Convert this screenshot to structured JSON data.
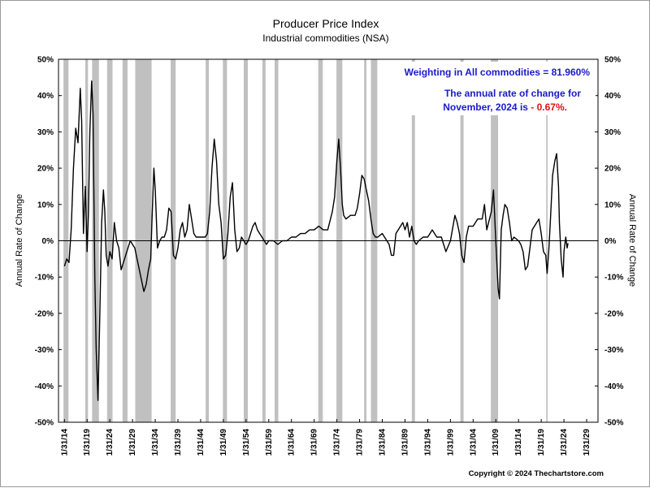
{
  "title": "Producer Price Index",
  "subtitle": "Industrial commodities (NSA)",
  "copyright": "Copyright © 2024 Thechartstore.com",
  "annotation": {
    "weighting": "Weighting in All commodities = 81.960%",
    "rate_line1": "The annual rate of change for",
    "rate_line2_prefix": "November, 2024 is ",
    "rate_value": "- 0.67%.",
    "text_color": "#1a1acc",
    "value_color": "#e01010"
  },
  "chart_data": {
    "type": "line",
    "title": "Producer Price Index",
    "subtitle": "Industrial commodities (NSA)",
    "ylabel": "Annual Rate of Change",
    "ylabel_right": "Annual Rate of Change",
    "xlim": [
      1912.7,
      2031.5
    ],
    "ylim": [
      -50,
      50
    ],
    "y_ticks": [
      -50,
      -40,
      -30,
      -20,
      -10,
      0,
      10,
      20,
      30,
      40,
      50
    ],
    "y_tick_labels": [
      "-50%",
      "-40%",
      "-30%",
      "-20%",
      "-10%",
      "0%",
      "10%",
      "20%",
      "30%",
      "40%",
      "50%"
    ],
    "x_tick_labels": [
      "1/31/14",
      "1/31/19",
      "1/31/24",
      "1/31/29",
      "1/31/34",
      "1/31/39",
      "1/31/44",
      "1/31/49",
      "1/31/54",
      "1/31/59",
      "1/31/64",
      "1/31/69",
      "1/31/74",
      "1/31/79",
      "1/31/84",
      "1/31/89",
      "1/31/94",
      "1/31/99",
      "1/31/04",
      "1/31/09",
      "1/31/14",
      "1/31/19",
      "1/31/24",
      "1/31/29"
    ],
    "x_tick_years": [
      1914,
      1919,
      1924,
      1929,
      1934,
      1939,
      1944,
      1949,
      1954,
      1959,
      1964,
      1969,
      1974,
      1979,
      1984,
      1989,
      1994,
      1999,
      2004,
      2009,
      2014,
      2019,
      2024,
      2029
    ],
    "grid": false,
    "zero_line": true,
    "line_color": "#000000",
    "recession_color": "#c0c0c0",
    "recessions": [
      [
        1913.8,
        1914.9
      ],
      [
        1918.6,
        1919.2
      ],
      [
        1920.1,
        1921.6
      ],
      [
        1923.4,
        1924.6
      ],
      [
        1926.8,
        1927.9
      ],
      [
        1929.6,
        1933.2
      ],
      [
        1937.4,
        1938.5
      ],
      [
        1945.1,
        1945.8
      ],
      [
        1948.9,
        1949.8
      ],
      [
        1953.5,
        1954.4
      ],
      [
        1957.6,
        1958.3
      ],
      [
        1960.3,
        1961.1
      ],
      [
        1969.9,
        1970.9
      ],
      [
        1973.9,
        1975.2
      ],
      [
        1980.0,
        1980.5
      ],
      [
        1981.5,
        1982.9
      ],
      [
        1990.5,
        1991.2
      ],
      [
        2001.2,
        2001.9
      ],
      [
        2007.9,
        2009.5
      ],
      [
        2020.1,
        2020.4
      ]
    ],
    "series": [
      {
        "points": [
          [
            1914.0,
            -7
          ],
          [
            1914.5,
            -5
          ],
          [
            1915.0,
            -6
          ],
          [
            1915.5,
            3
          ],
          [
            1916.0,
            20
          ],
          [
            1916.5,
            31
          ],
          [
            1917.0,
            27
          ],
          [
            1917.5,
            42
          ],
          [
            1917.8,
            33
          ],
          [
            1918.2,
            2
          ],
          [
            1918.6,
            15
          ],
          [
            1919.0,
            -3
          ],
          [
            1919.3,
            8
          ],
          [
            1919.6,
            30
          ],
          [
            1920.0,
            44
          ],
          [
            1920.3,
            35
          ],
          [
            1920.7,
            -10
          ],
          [
            1921.0,
            -30
          ],
          [
            1921.4,
            -44
          ],
          [
            1921.8,
            -20
          ],
          [
            1922.2,
            5
          ],
          [
            1922.6,
            14
          ],
          [
            1922.9,
            8
          ],
          [
            1923.2,
            -4
          ],
          [
            1923.6,
            -7
          ],
          [
            1924.0,
            -3
          ],
          [
            1924.5,
            -5
          ],
          [
            1925.0,
            5
          ],
          [
            1925.5,
            0
          ],
          [
            1926.0,
            -2
          ],
          [
            1926.5,
            -8
          ],
          [
            1927.0,
            -6
          ],
          [
            1928.0,
            -2
          ],
          [
            1928.5,
            0
          ],
          [
            1929.0,
            -1
          ],
          [
            1929.5,
            -2
          ],
          [
            1930.0,
            -5
          ],
          [
            1930.5,
            -8
          ],
          [
            1931.0,
            -11
          ],
          [
            1931.5,
            -14
          ],
          [
            1932.0,
            -12
          ],
          [
            1932.5,
            -8
          ],
          [
            1933.0,
            -5
          ],
          [
            1933.3,
            6
          ],
          [
            1933.7,
            20
          ],
          [
            1934.0,
            14
          ],
          [
            1934.5,
            -2
          ],
          [
            1935.0,
            0
          ],
          [
            1935.5,
            1
          ],
          [
            1936.0,
            1
          ],
          [
            1936.5,
            3
          ],
          [
            1937.0,
            9
          ],
          [
            1937.5,
            8
          ],
          [
            1938.0,
            -4
          ],
          [
            1938.5,
            -5
          ],
          [
            1939.0,
            -2
          ],
          [
            1939.5,
            3
          ],
          [
            1940.0,
            5
          ],
          [
            1940.5,
            1
          ],
          [
            1941.0,
            3
          ],
          [
            1941.5,
            10
          ],
          [
            1942.0,
            6
          ],
          [
            1942.5,
            2
          ],
          [
            1943.0,
            1
          ],
          [
            1944.0,
            1
          ],
          [
            1945.0,
            1
          ],
          [
            1945.5,
            2
          ],
          [
            1946.0,
            8
          ],
          [
            1946.5,
            20
          ],
          [
            1947.0,
            28
          ],
          [
            1947.5,
            22
          ],
          [
            1948.0,
            10
          ],
          [
            1948.5,
            5
          ],
          [
            1949.0,
            -5
          ],
          [
            1949.5,
            -4
          ],
          [
            1950.0,
            2
          ],
          [
            1950.5,
            12
          ],
          [
            1951.0,
            16
          ],
          [
            1951.5,
            3
          ],
          [
            1952.0,
            -3
          ],
          [
            1952.5,
            -2
          ],
          [
            1953.0,
            1
          ],
          [
            1953.5,
            0
          ],
          [
            1954.0,
            -1
          ],
          [
            1954.5,
            0
          ],
          [
            1955.0,
            2
          ],
          [
            1955.5,
            4
          ],
          [
            1956.0,
            5
          ],
          [
            1956.5,
            3
          ],
          [
            1957.0,
            2
          ],
          [
            1957.5,
            1
          ],
          [
            1958.0,
            0
          ],
          [
            1958.5,
            -1
          ],
          [
            1959.0,
            0
          ],
          [
            1960.0,
            0
          ],
          [
            1961.0,
            -1
          ],
          [
            1962.0,
            0
          ],
          [
            1963.0,
            0
          ],
          [
            1964.0,
            1
          ],
          [
            1965.0,
            1
          ],
          [
            1966.0,
            2
          ],
          [
            1967.0,
            2
          ],
          [
            1968.0,
            3
          ],
          [
            1969.0,
            3
          ],
          [
            1970.0,
            4
          ],
          [
            1971.0,
            3
          ],
          [
            1972.0,
            3
          ],
          [
            1973.0,
            8
          ],
          [
            1973.5,
            12
          ],
          [
            1974.0,
            22
          ],
          [
            1974.4,
            28
          ],
          [
            1974.8,
            20
          ],
          [
            1975.2,
            10
          ],
          [
            1975.5,
            7
          ],
          [
            1976.0,
            6
          ],
          [
            1977.0,
            7
          ],
          [
            1978.0,
            7
          ],
          [
            1978.5,
            9
          ],
          [
            1979.0,
            13
          ],
          [
            1979.5,
            18
          ],
          [
            1980.0,
            17
          ],
          [
            1980.5,
            14
          ],
          [
            1981.0,
            11
          ],
          [
            1981.5,
            6
          ],
          [
            1982.0,
            2
          ],
          [
            1982.5,
            1
          ],
          [
            1983.0,
            1
          ],
          [
            1984.0,
            2
          ],
          [
            1985.0,
            0
          ],
          [
            1985.5,
            -1
          ],
          [
            1986.0,
            -4
          ],
          [
            1986.5,
            -4
          ],
          [
            1987.0,
            2
          ],
          [
            1988.0,
            4
          ],
          [
            1988.5,
            5
          ],
          [
            1989.0,
            3
          ],
          [
            1989.5,
            5
          ],
          [
            1990.0,
            1
          ],
          [
            1990.5,
            4
          ],
          [
            1991.0,
            0
          ],
          [
            1991.5,
            -1
          ],
          [
            1992.0,
            0
          ],
          [
            1993.0,
            1
          ],
          [
            1994.0,
            1
          ],
          [
            1995.0,
            3
          ],
          [
            1996.0,
            1
          ],
          [
            1997.0,
            1
          ],
          [
            1998.0,
            -3
          ],
          [
            1999.0,
            0
          ],
          [
            2000.0,
            7
          ],
          [
            2000.5,
            5
          ],
          [
            2001.0,
            2
          ],
          [
            2001.5,
            -4
          ],
          [
            2002.0,
            -6
          ],
          [
            2002.5,
            1
          ],
          [
            2003.0,
            4
          ],
          [
            2004.0,
            4
          ],
          [
            2005.0,
            6
          ],
          [
            2006.0,
            6
          ],
          [
            2006.5,
            10
          ],
          [
            2007.0,
            3
          ],
          [
            2008.0,
            8
          ],
          [
            2008.5,
            14
          ],
          [
            2009.0,
            0
          ],
          [
            2009.5,
            -13
          ],
          [
            2009.8,
            -16
          ],
          [
            2010.2,
            3
          ],
          [
            2010.6,
            7
          ],
          [
            2011.0,
            10
          ],
          [
            2011.5,
            9
          ],
          [
            2012.0,
            5
          ],
          [
            2012.5,
            0
          ],
          [
            2013.0,
            1
          ],
          [
            2014.0,
            0
          ],
          [
            2014.5,
            -1
          ],
          [
            2015.0,
            -3
          ],
          [
            2015.5,
            -8
          ],
          [
            2016.0,
            -7
          ],
          [
            2016.5,
            -2
          ],
          [
            2017.0,
            3
          ],
          [
            2018.0,
            5
          ],
          [
            2018.5,
            6
          ],
          [
            2019.0,
            2
          ],
          [
            2019.5,
            -3
          ],
          [
            2020.0,
            -4
          ],
          [
            2020.3,
            -9
          ],
          [
            2020.7,
            -2
          ],
          [
            2021.0,
            5
          ],
          [
            2021.5,
            18
          ],
          [
            2022.0,
            22
          ],
          [
            2022.4,
            24
          ],
          [
            2022.8,
            15
          ],
          [
            2023.0,
            5
          ],
          [
            2023.4,
            -5
          ],
          [
            2023.8,
            -10
          ],
          [
            2024.0,
            -3
          ],
          [
            2024.4,
            1
          ],
          [
            2024.7,
            -2
          ],
          [
            2024.9,
            -0.67
          ]
        ]
      }
    ]
  }
}
